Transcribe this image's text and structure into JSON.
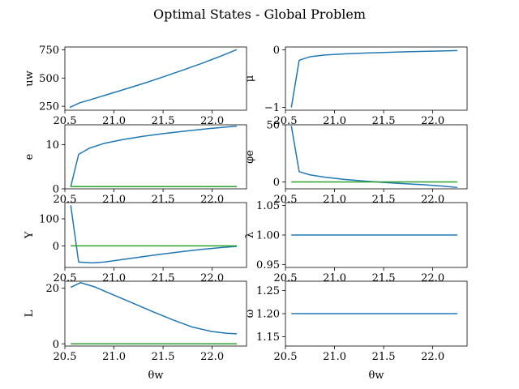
{
  "chart_data": {
    "type": "line",
    "title": "Optimal States - Global Problem",
    "colors": {
      "state": "#1f77b4",
      "reference": "#2ca02c"
    },
    "subplots": [
      {
        "id": "uw",
        "ylabel": "uw",
        "xlabel": "",
        "xlim": [
          20.5,
          22.35
        ],
        "ylim": [
          215,
          775
        ],
        "xticks": [
          "20.5",
          "21.0",
          "21.5",
          "22.0"
        ],
        "yticks": [
          250,
          500,
          750
        ],
        "series": [
          {
            "color": "#1f77b4",
            "x": [
              20.55,
              20.65,
              20.75,
              20.9,
              21.1,
              21.3,
              21.5,
              21.7,
              21.9,
              22.1,
              22.25
            ],
            "y": [
              240,
              280,
              305,
              345,
              398,
              452,
              510,
              570,
              632,
              698,
              752
            ]
          }
        ]
      },
      {
        "id": "mu",
        "ylabel": "μ",
        "xlabel": "",
        "xlim": [
          20.5,
          22.35
        ],
        "ylim": [
          -1.05,
          0.05
        ],
        "xticks": [
          "20.5",
          "21.0",
          "21.5",
          "22.0"
        ],
        "yticks": [
          -1,
          0
        ],
        "ytick_labels": [
          "−1",
          "0"
        ],
        "series": [
          {
            "color": "#1f77b4",
            "x": [
              20.56,
              20.64,
              20.75,
              20.9,
              21.1,
              21.3,
              21.5,
              21.7,
              21.9,
              22.1,
              22.25
            ],
            "y": [
              -1.0,
              -0.18,
              -0.12,
              -0.09,
              -0.07,
              -0.055,
              -0.045,
              -0.035,
              -0.025,
              -0.018,
              -0.012
            ]
          }
        ]
      },
      {
        "id": "e",
        "ylabel": "e",
        "xlabel": "",
        "xlim": [
          20.5,
          22.35
        ],
        "ylim": [
          0,
          14.5
        ],
        "xticks": [
          "20.5",
          "21.0",
          "21.5",
          "22.0"
        ],
        "yticks": [
          0,
          10
        ],
        "series": [
          {
            "color": "#1f77b4",
            "x": [
              20.56,
              20.64,
              20.75,
              20.9,
              21.1,
              21.3,
              21.5,
              21.7,
              21.9,
              22.1,
              22.25
            ],
            "y": [
              0.5,
              7.8,
              9.2,
              10.3,
              11.2,
              11.9,
              12.5,
              13.0,
              13.5,
              13.9,
              14.2
            ]
          },
          {
            "color": "#2ca02c",
            "x": [
              20.56,
              22.25
            ],
            "y": [
              0.5,
              0.5
            ]
          }
        ]
      },
      {
        "id": "phie",
        "ylabel": "φe",
        "xlabel": "",
        "xlim": [
          20.5,
          22.35
        ],
        "ylim": [
          -6,
          50
        ],
        "xticks": [
          "20.5",
          "21.0",
          "21.5",
          "22.0"
        ],
        "yticks": [
          0,
          50
        ],
        "series": [
          {
            "color": "#1f77b4",
            "x": [
              20.56,
              20.64,
              20.75,
              20.9,
              21.1,
              21.3,
              21.5,
              21.7,
              21.9,
              22.1,
              22.25
            ],
            "y": [
              49,
              9,
              6.2,
              4.2,
              2.2,
              0.8,
              -0.4,
              -1.5,
              -2.4,
              -3.6,
              -4.8
            ]
          },
          {
            "color": "#2ca02c",
            "x": [
              20.56,
              22.25
            ],
            "y": [
              0,
              0
            ]
          }
        ]
      },
      {
        "id": "Y",
        "ylabel": "Y",
        "xlabel": "",
        "xlim": [
          20.5,
          22.35
        ],
        "ylim": [
          -80,
          160
        ],
        "xticks": [
          "20.5",
          "21.0",
          "21.5",
          "22.0"
        ],
        "yticks": [
          0,
          100
        ],
        "series": [
          {
            "color": "#1f77b4",
            "x": [
              20.56,
              20.64,
              20.78,
              20.9,
              21.1,
              21.3,
              21.5,
              21.7,
              21.9,
              22.1,
              22.25
            ],
            "y": [
              150,
              -60,
              -63,
              -60,
              -50,
              -40,
              -30,
              -21,
              -13,
              -6,
              -2
            ]
          },
          {
            "color": "#2ca02c",
            "x": [
              20.56,
              22.25
            ],
            "y": [
              0,
              0
            ]
          }
        ]
      },
      {
        "id": "lambda",
        "ylabel": "λ",
        "xlabel": "",
        "xlim": [
          20.5,
          22.35
        ],
        "ylim": [
          0.945,
          1.055
        ],
        "xticks": [
          "20.5",
          "21.0",
          "21.5",
          "22.0"
        ],
        "yticks": [
          0.95,
          1.0,
          1.05
        ],
        "ytick_labels": [
          "0.95",
          "1.00",
          "1.05"
        ],
        "series": [
          {
            "color": "#1f77b4",
            "x": [
              20.56,
              22.25
            ],
            "y": [
              1.0,
              1.0
            ]
          }
        ]
      },
      {
        "id": "L",
        "ylabel": "L",
        "xlabel": "θw",
        "xlim": [
          20.5,
          22.35
        ],
        "ylim": [
          -0.8,
          22.5
        ],
        "xticks": [
          "20.5",
          "21.0",
          "21.5",
          "22.0"
        ],
        "yticks": [
          0,
          20
        ],
        "series": [
          {
            "color": "#1f77b4",
            "x": [
              20.56,
              20.66,
              20.8,
              21.0,
              21.2,
              21.4,
              21.6,
              21.8,
              22.0,
              22.15,
              22.25
            ],
            "y": [
              20.3,
              22.0,
              20.5,
              17.5,
              14.5,
              11.5,
              8.6,
              6.0,
              4.4,
              3.8,
              3.6
            ]
          },
          {
            "color": "#2ca02c",
            "x": [
              20.56,
              22.25
            ],
            "y": [
              0,
              0
            ]
          }
        ]
      },
      {
        "id": "omega",
        "ylabel": "ω",
        "xlabel": "θw",
        "xlim": [
          20.5,
          22.35
        ],
        "ylim": [
          1.13,
          1.27
        ],
        "xticks": [
          "20.5",
          "21.0",
          "21.5",
          "22.0"
        ],
        "yticks": [
          1.15,
          1.2,
          1.25
        ],
        "ytick_labels": [
          "1.15",
          "1.20",
          "1.25"
        ],
        "series": [
          {
            "color": "#1f77b4",
            "x": [
              20.56,
              22.25
            ],
            "y": [
              1.2,
              1.2
            ]
          }
        ]
      }
    ]
  }
}
